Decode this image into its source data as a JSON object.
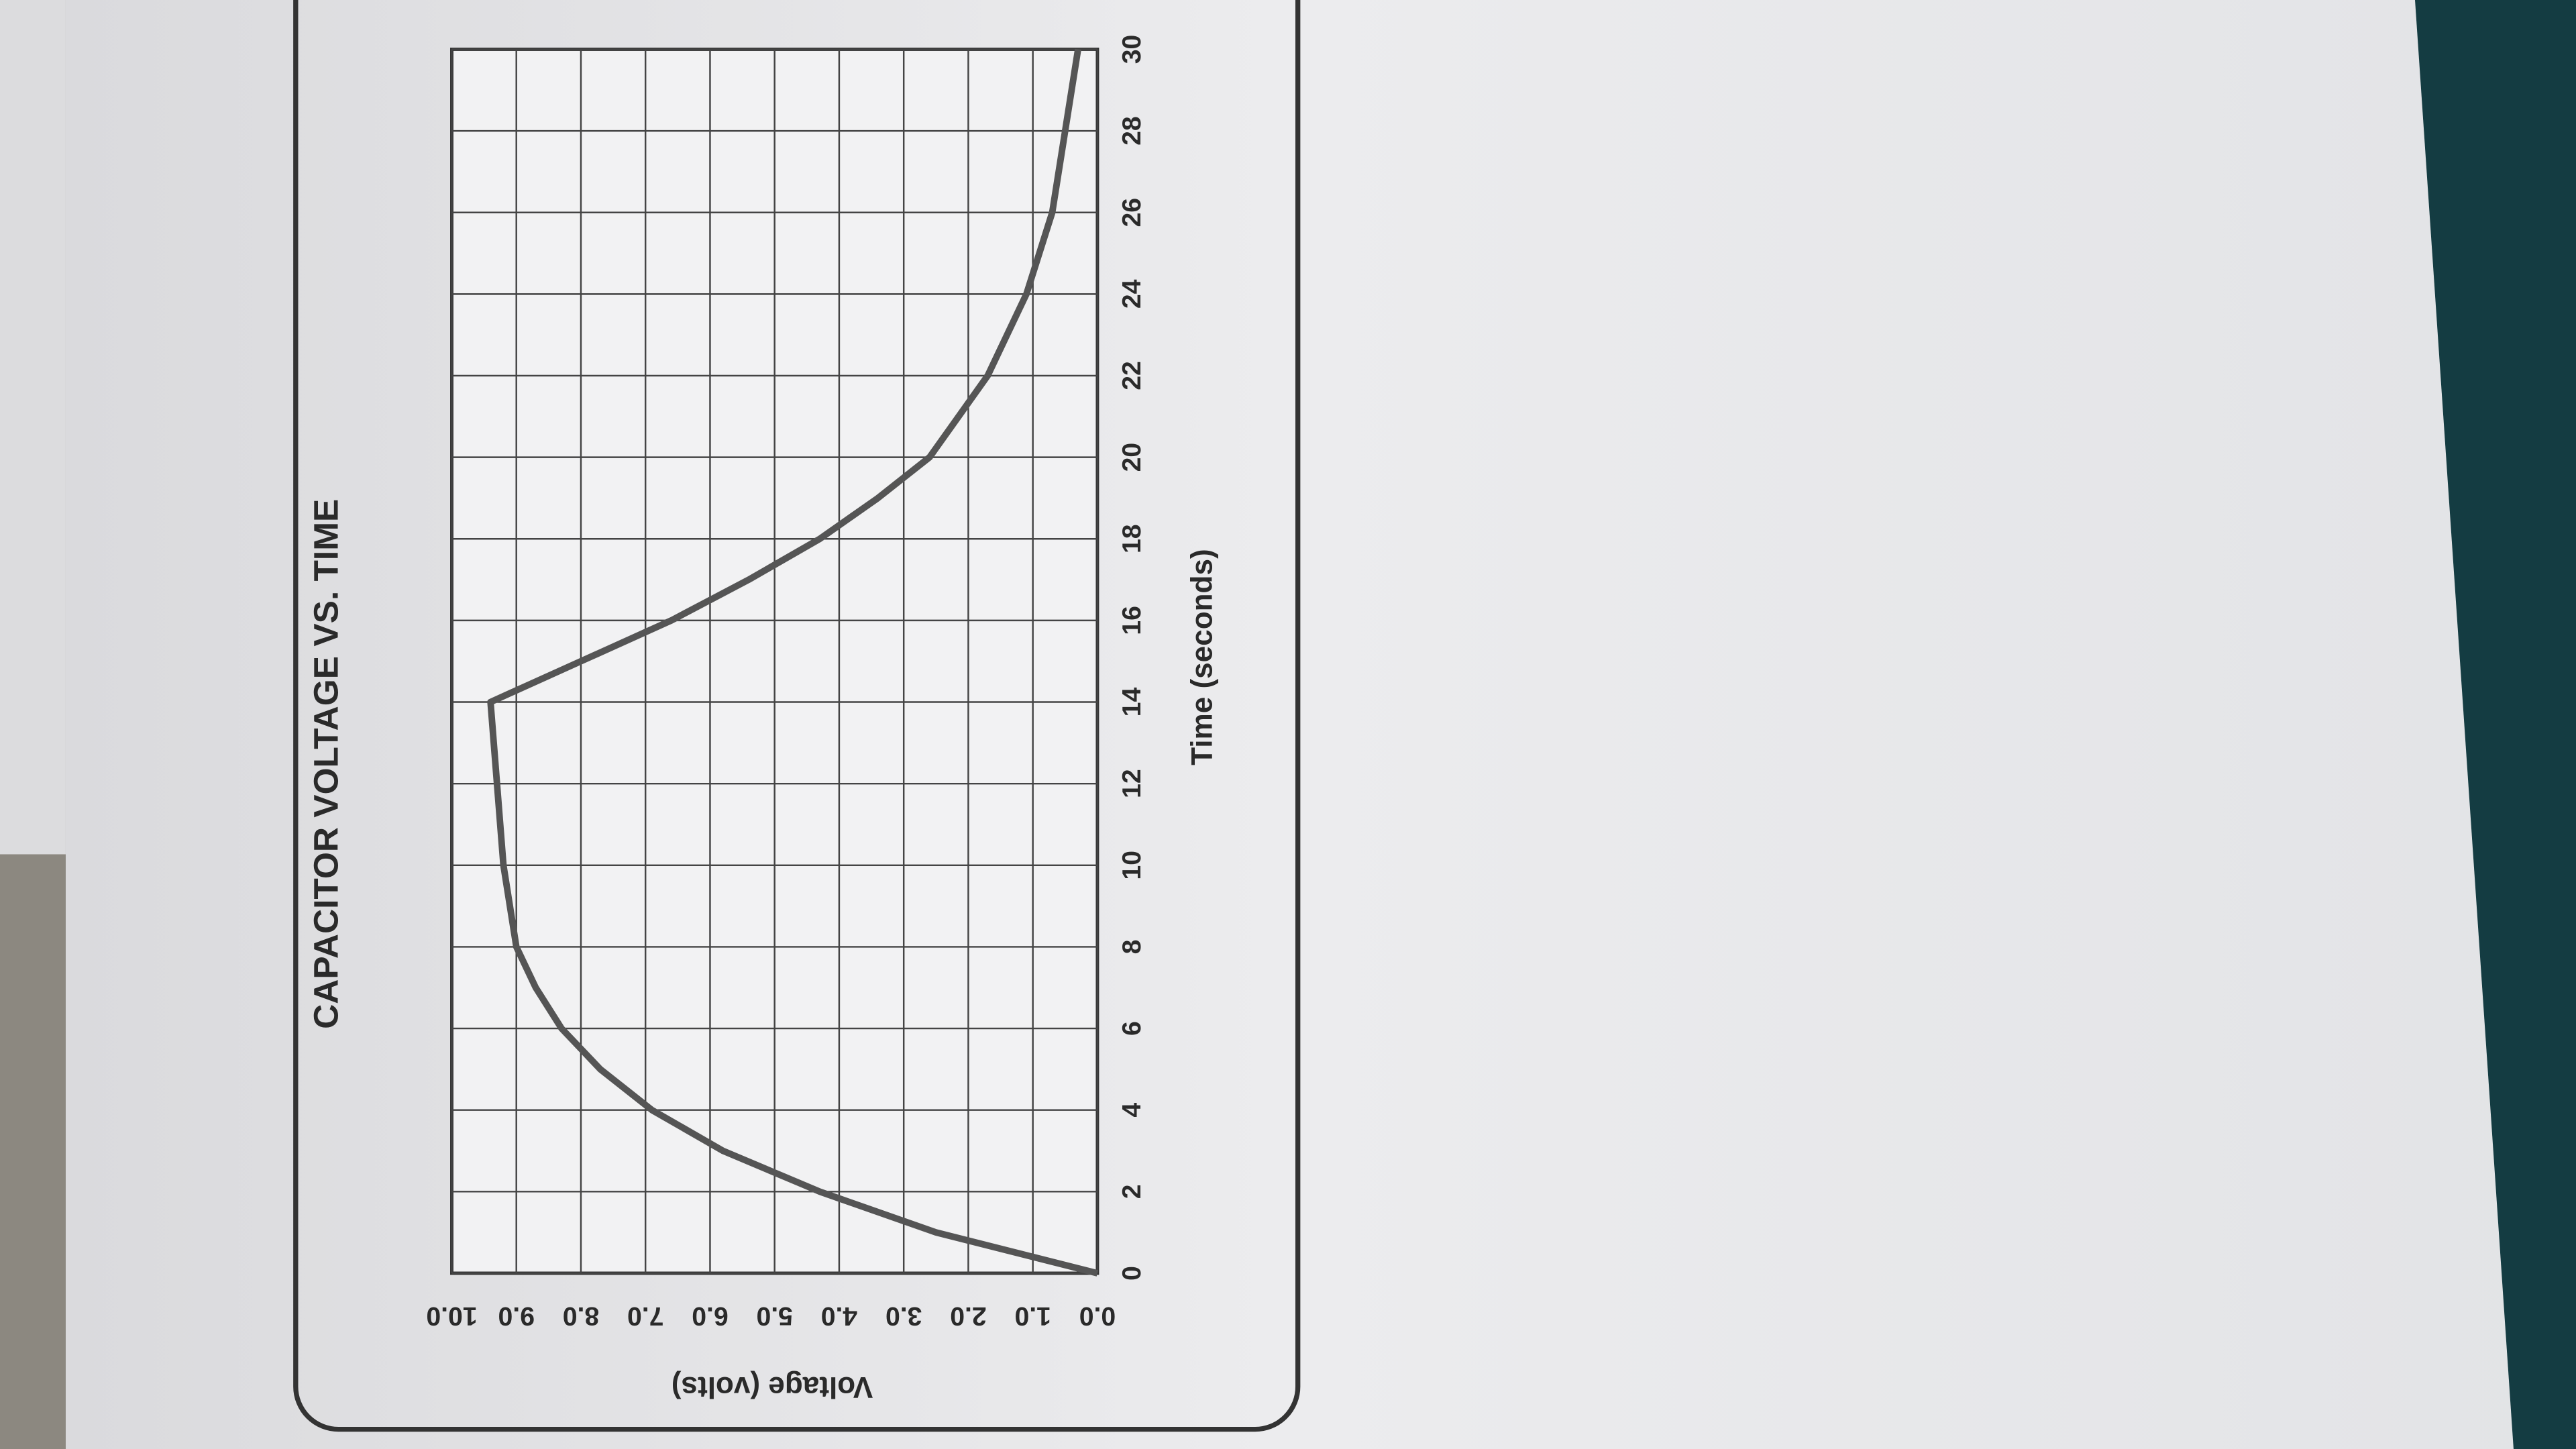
{
  "chart_data": {
    "type": "line",
    "title": "CAPACITOR VOLTAGE VS. TIME",
    "x_label": "Time (seconds)",
    "y_label": "Voltage (volts)",
    "x": [
      0,
      1,
      2,
      3,
      4,
      5,
      6,
      7,
      8,
      10,
      12,
      14,
      15,
      16,
      17,
      18,
      19,
      20,
      22,
      24,
      26,
      28,
      30
    ],
    "values": [
      0,
      2.5,
      4.3,
      5.8,
      6.9,
      7.7,
      8.3,
      8.7,
      9.0,
      9.2,
      9.3,
      9.4,
      8.0,
      6.6,
      5.4,
      4.3,
      3.4,
      2.6,
      1.7,
      1.1,
      0.7,
      0.5,
      0.3
    ],
    "color": "#555555",
    "xlim": [
      0,
      30
    ],
    "xticks": [
      0,
      2,
      4,
      6,
      8,
      10,
      12,
      14,
      16,
      18,
      20,
      22,
      24,
      26,
      28,
      30
    ],
    "ylim": [
      0,
      10
    ],
    "yticks": [
      {
        "value": 0,
        "label": "0.0"
      },
      {
        "value": 1,
        "label": "1.0"
      },
      {
        "value": 2,
        "label": "2.0"
      },
      {
        "value": 3,
        "label": "3.0"
      },
      {
        "value": 4,
        "label": "4.0"
      },
      {
        "value": 5,
        "label": "5.0"
      },
      {
        "value": 6,
        "label": "6.0"
      },
      {
        "value": 7,
        "label": "7.0"
      },
      {
        "value": 8,
        "label": "8.0"
      },
      {
        "value": 9,
        "label": "9.0"
      },
      {
        "value": 10,
        "label": "10.0"
      }
    ],
    "grid": true
  }
}
